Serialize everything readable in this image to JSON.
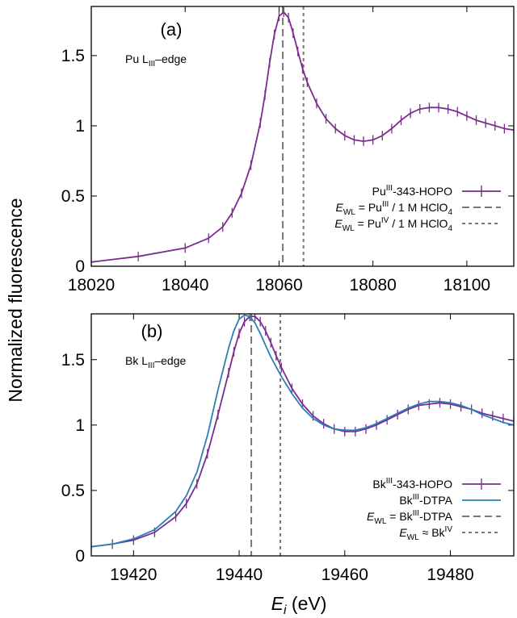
{
  "y_axis_label": "Normalized fluorescence",
  "x_axis_label": {
    "main": "E",
    "sub": "i",
    "unit": " (eV)"
  },
  "colors": {
    "purple": "#7b2d8e",
    "blue": "#2a7fb8",
    "gray": "#777777",
    "axis": "#000000"
  },
  "chart_data": [
    {
      "type": "line",
      "panel_label": "(a)",
      "edge": {
        "element": "Pu L",
        "sub": "III",
        "suffix": "–edge"
      },
      "xlim": [
        18020,
        18110
      ],
      "ylim": [
        0,
        1.85
      ],
      "x_ticks": [
        18020,
        18040,
        18060,
        18080,
        18100
      ],
      "y_ticks": [
        0,
        0.5,
        1,
        1.5
      ],
      "y_tick_labels": [
        "0",
        "0.5",
        "1",
        "1.5"
      ],
      "vlines": [
        {
          "x": 18060.8,
          "dash": "long"
        },
        {
          "x": 18065.2,
          "dash": "short"
        }
      ],
      "legend": [
        {
          "pre": "Pu",
          "sup": "III",
          "post": "-343-HOPO"
        },
        {
          "pre": "E",
          "sub": "WL",
          "mid": " = Pu",
          "sup": "III",
          "post": " / 1 M HClO",
          "sub2": "4"
        },
        {
          "pre": "E",
          "sub": "WL",
          "mid": " = Pu",
          "sup": "IV",
          "post": " / 1 M HClO",
          "sub2": "4"
        }
      ],
      "series": [
        {
          "name": "PuIII-343-HOPO",
          "style": "purple-marked",
          "x": [
            18020,
            18030,
            18040,
            18045,
            18048,
            18050,
            18052,
            18054,
            18056,
            18057,
            18058,
            18059,
            18060,
            18061,
            18062,
            18063,
            18064,
            18065,
            18066,
            18068,
            18070,
            18072,
            18074,
            18076,
            18078,
            18080,
            18082,
            18084,
            18086,
            18088,
            18090,
            18092,
            18094,
            18096,
            18098,
            18100,
            18102,
            18104,
            18106,
            18108,
            18110
          ],
          "y": [
            0.03,
            0.07,
            0.13,
            0.2,
            0.28,
            0.38,
            0.52,
            0.72,
            1.02,
            1.22,
            1.45,
            1.65,
            1.78,
            1.81,
            1.77,
            1.66,
            1.53,
            1.41,
            1.31,
            1.16,
            1.05,
            0.98,
            0.93,
            0.9,
            0.89,
            0.9,
            0.93,
            0.98,
            1.04,
            1.09,
            1.12,
            1.13,
            1.13,
            1.12,
            1.1,
            1.07,
            1.04,
            1.02,
            1.0,
            0.98,
            0.97
          ]
        }
      ]
    },
    {
      "type": "line",
      "panel_label": "(b)",
      "edge": {
        "element": "Bk L",
        "sub": "III",
        "suffix": "–edge"
      },
      "xlim": [
        19412,
        19492
      ],
      "ylim": [
        0,
        1.85
      ],
      "x_ticks": [
        19420,
        19440,
        19460,
        19480
      ],
      "y_ticks": [
        0,
        0.5,
        1,
        1.5
      ],
      "y_tick_labels": [
        "0",
        "0.5",
        "1",
        "1.5"
      ],
      "vlines": [
        {
          "x": 19442.3,
          "dash": "long"
        },
        {
          "x": 19447.8,
          "dash": "short"
        }
      ],
      "legend": [
        {
          "pre": "Bk",
          "sup": "III",
          "post": "-343-HOPO"
        },
        {
          "pre": "Bk",
          "sup": "III",
          "post": "-DTPA"
        },
        {
          "pre": "E",
          "sub": "WL",
          "mid": " = Bk",
          "sup": "III",
          "post": "-DTPA"
        },
        {
          "pre": "E",
          "sub": "WL",
          "mid": " ≈ Bk",
          "sup": "IV",
          "post": ""
        }
      ],
      "series": [
        {
          "name": "BkIII-343-HOPO",
          "style": "purple-marked",
          "x": [
            19412,
            19416,
            19420,
            19424,
            19428,
            19430,
            19432,
            19434,
            19436,
            19438,
            19439,
            19440,
            19441,
            19442,
            19443,
            19444,
            19445,
            19446,
            19447,
            19448,
            19450,
            19452,
            19454,
            19456,
            19458,
            19460,
            19462,
            19464,
            19466,
            19468,
            19470,
            19472,
            19474,
            19476,
            19478,
            19480,
            19482,
            19484,
            19486,
            19488,
            19490,
            19492
          ],
          "y": [
            0.07,
            0.09,
            0.12,
            0.18,
            0.3,
            0.4,
            0.55,
            0.78,
            1.08,
            1.4,
            1.56,
            1.7,
            1.79,
            1.83,
            1.83,
            1.79,
            1.72,
            1.63,
            1.53,
            1.44,
            1.28,
            1.16,
            1.07,
            1.01,
            0.97,
            0.95,
            0.95,
            0.97,
            1.0,
            1.04,
            1.08,
            1.12,
            1.15,
            1.16,
            1.17,
            1.16,
            1.14,
            1.12,
            1.09,
            1.07,
            1.05,
            1.03
          ]
        },
        {
          "name": "BkIII-DTPA",
          "style": "blue",
          "x": [
            19412,
            19416,
            19420,
            19424,
            19428,
            19430,
            19432,
            19434,
            19436,
            19438,
            19439,
            19440,
            19441,
            19442,
            19443,
            19444,
            19445,
            19446,
            19448,
            19450,
            19452,
            19454,
            19456,
            19458,
            19460,
            19462,
            19464,
            19466,
            19468,
            19470,
            19472,
            19474,
            19476,
            19478,
            19480,
            19482,
            19484,
            19486,
            19488,
            19490,
            19492
          ],
          "y": [
            0.07,
            0.09,
            0.13,
            0.2,
            0.34,
            0.46,
            0.64,
            0.92,
            1.27,
            1.59,
            1.72,
            1.81,
            1.84,
            1.83,
            1.78,
            1.7,
            1.61,
            1.52,
            1.37,
            1.24,
            1.13,
            1.05,
            1.0,
            0.97,
            0.96,
            0.96,
            0.98,
            1.01,
            1.05,
            1.09,
            1.13,
            1.16,
            1.18,
            1.18,
            1.17,
            1.15,
            1.12,
            1.08,
            1.05,
            1.02,
            1.0
          ]
        }
      ]
    }
  ]
}
